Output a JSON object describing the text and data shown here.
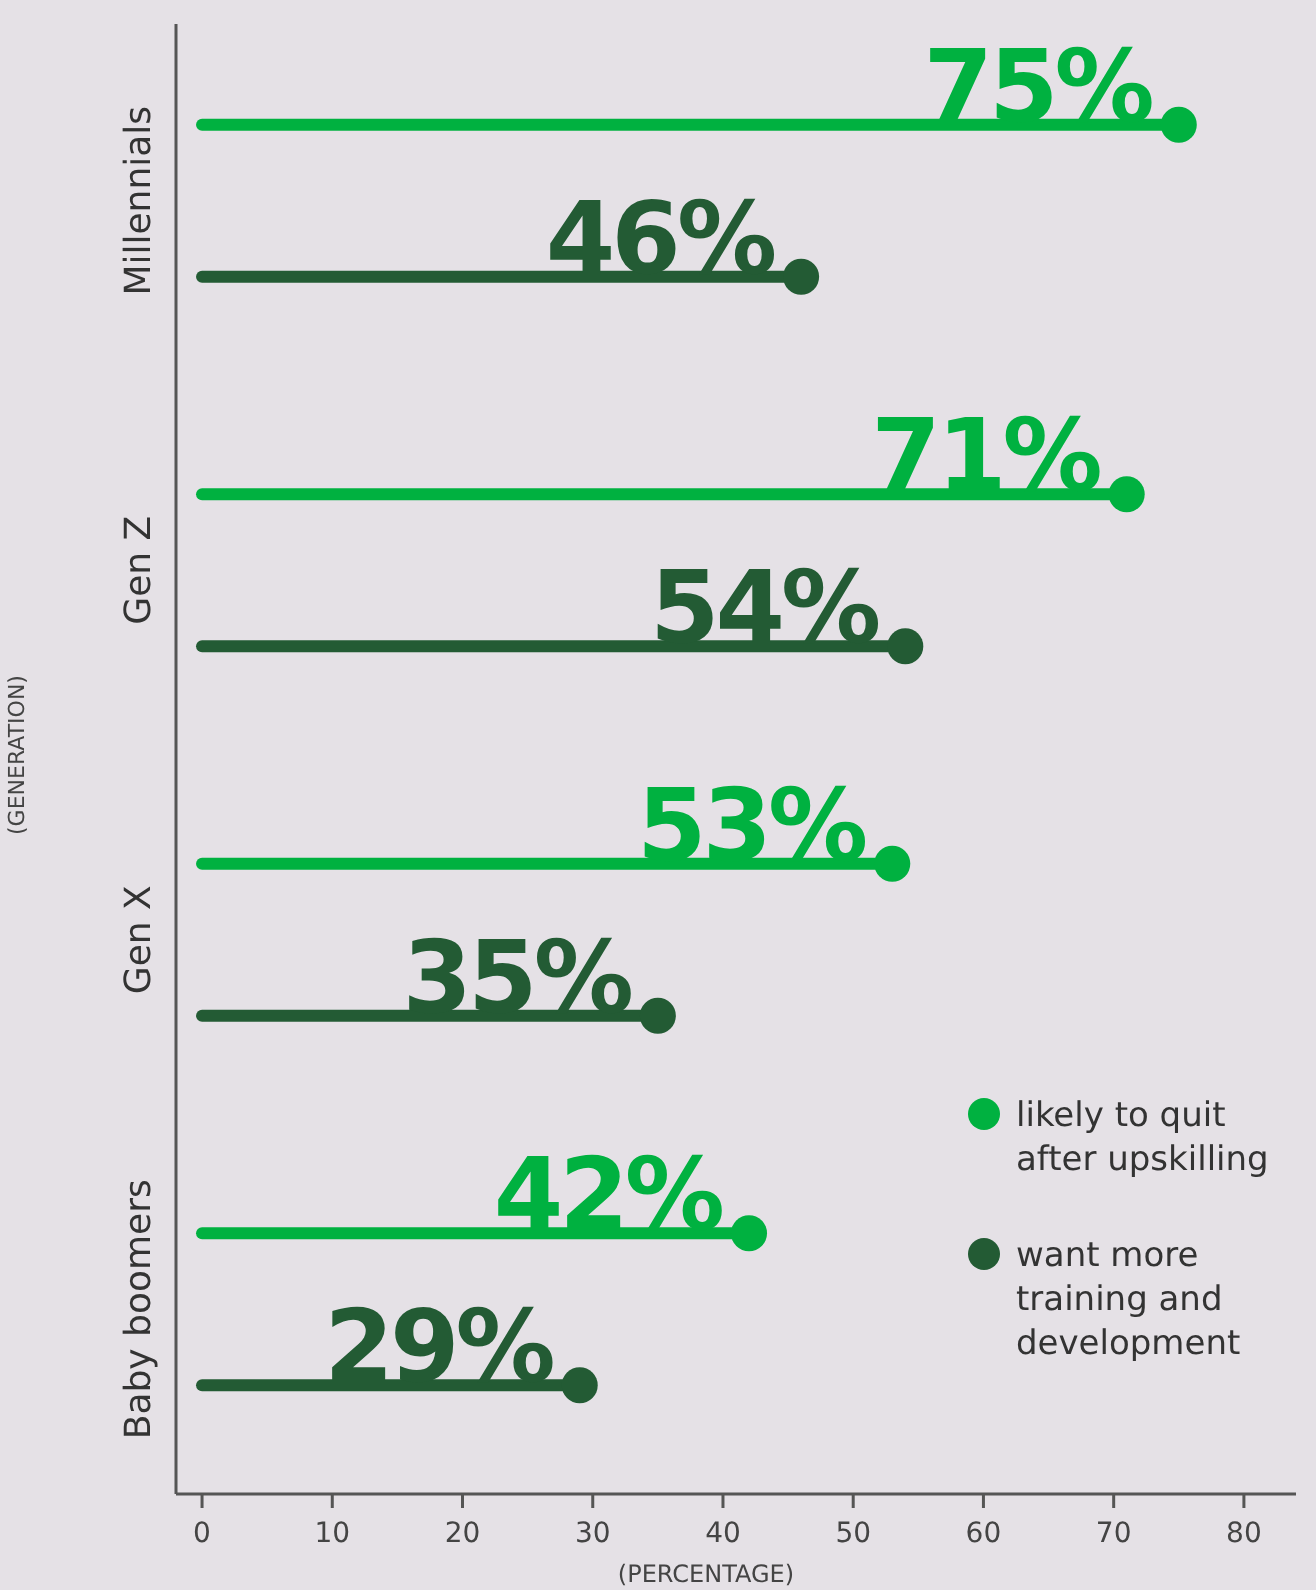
{
  "chart_data": {
    "type": "lollipop",
    "orientation": "horizontal",
    "xlabel": "(PERCENTAGE)",
    "ylabel": "(GENERATION)",
    "categories": [
      "Millennials",
      "Gen Z",
      "Gen X",
      "Baby boomers"
    ],
    "series": [
      {
        "name": "likely to quit after upskilling",
        "color": "#00b140",
        "values": [
          75,
          71,
          53,
          42
        ],
        "value_labels": [
          "75%",
          "71%",
          "53%",
          "42%"
        ]
      },
      {
        "name": "want more training and development",
        "color": "#235b34",
        "values": [
          46,
          54,
          35,
          29
        ],
        "value_labels": [
          "46%",
          "54%",
          "35%",
          "29%"
        ]
      }
    ],
    "xlim": [
      -2,
      84
    ],
    "xticks": [
      0,
      10,
      20,
      30,
      40,
      50,
      60,
      70,
      80
    ],
    "grid": false,
    "legend": "bottom right",
    "marker": "circle"
  }
}
